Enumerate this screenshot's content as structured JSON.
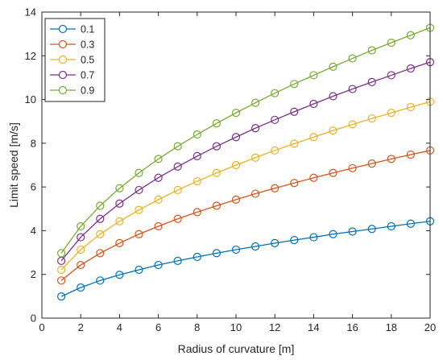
{
  "chart_data": {
    "type": "line",
    "title": "",
    "xlabel": "Radius of curvature [m]",
    "ylabel": "Limit speed [m/s]",
    "xlim": [
      0,
      20
    ],
    "ylim": [
      0,
      14
    ],
    "xticks": [
      0,
      2,
      4,
      6,
      8,
      10,
      12,
      14,
      16,
      18,
      20
    ],
    "yticks": [
      0,
      2,
      4,
      6,
      8,
      10,
      12,
      14
    ],
    "grid": false,
    "legend_position": "top-left",
    "marker": "circle",
    "x": [
      1,
      2,
      3,
      4,
      5,
      6,
      7,
      8,
      9,
      10,
      11,
      12,
      13,
      14,
      15,
      16,
      17,
      18,
      19,
      20
    ],
    "series": [
      {
        "name": "0.1",
        "color": "#0072BD",
        "values": [
          0.99,
          1.4,
          1.72,
          1.98,
          2.21,
          2.43,
          2.62,
          2.8,
          2.97,
          3.13,
          3.28,
          3.43,
          3.57,
          3.7,
          3.84,
          3.96,
          4.08,
          4.2,
          4.32,
          4.43
        ]
      },
      {
        "name": "0.3",
        "color": "#D95319",
        "values": [
          1.72,
          2.43,
          2.97,
          3.43,
          3.84,
          4.2,
          4.54,
          4.85,
          5.14,
          5.42,
          5.69,
          5.94,
          6.18,
          6.42,
          6.64,
          6.86,
          7.07,
          7.28,
          7.48,
          7.67
        ]
      },
      {
        "name": "0.5",
        "color": "#EDB120",
        "values": [
          2.21,
          3.13,
          3.84,
          4.43,
          4.95,
          5.42,
          5.86,
          6.26,
          6.64,
          7.0,
          7.34,
          7.67,
          7.98,
          8.28,
          8.58,
          8.86,
          9.13,
          9.39,
          9.65,
          9.9
        ]
      },
      {
        "name": "0.7",
        "color": "#7E2F8E",
        "values": [
          2.62,
          3.7,
          4.54,
          5.24,
          5.86,
          6.42,
          6.93,
          7.41,
          7.86,
          8.28,
          8.69,
          9.07,
          9.44,
          9.8,
          10.15,
          10.48,
          10.8,
          11.11,
          11.42,
          11.71
        ]
      },
      {
        "name": "0.9",
        "color": "#77AC30",
        "values": [
          2.97,
          4.2,
          5.14,
          5.94,
          6.64,
          7.28,
          7.86,
          8.4,
          8.91,
          9.39,
          9.85,
          10.29,
          10.71,
          11.11,
          11.5,
          11.88,
          12.25,
          12.6,
          12.94,
          13.28
        ]
      }
    ]
  }
}
